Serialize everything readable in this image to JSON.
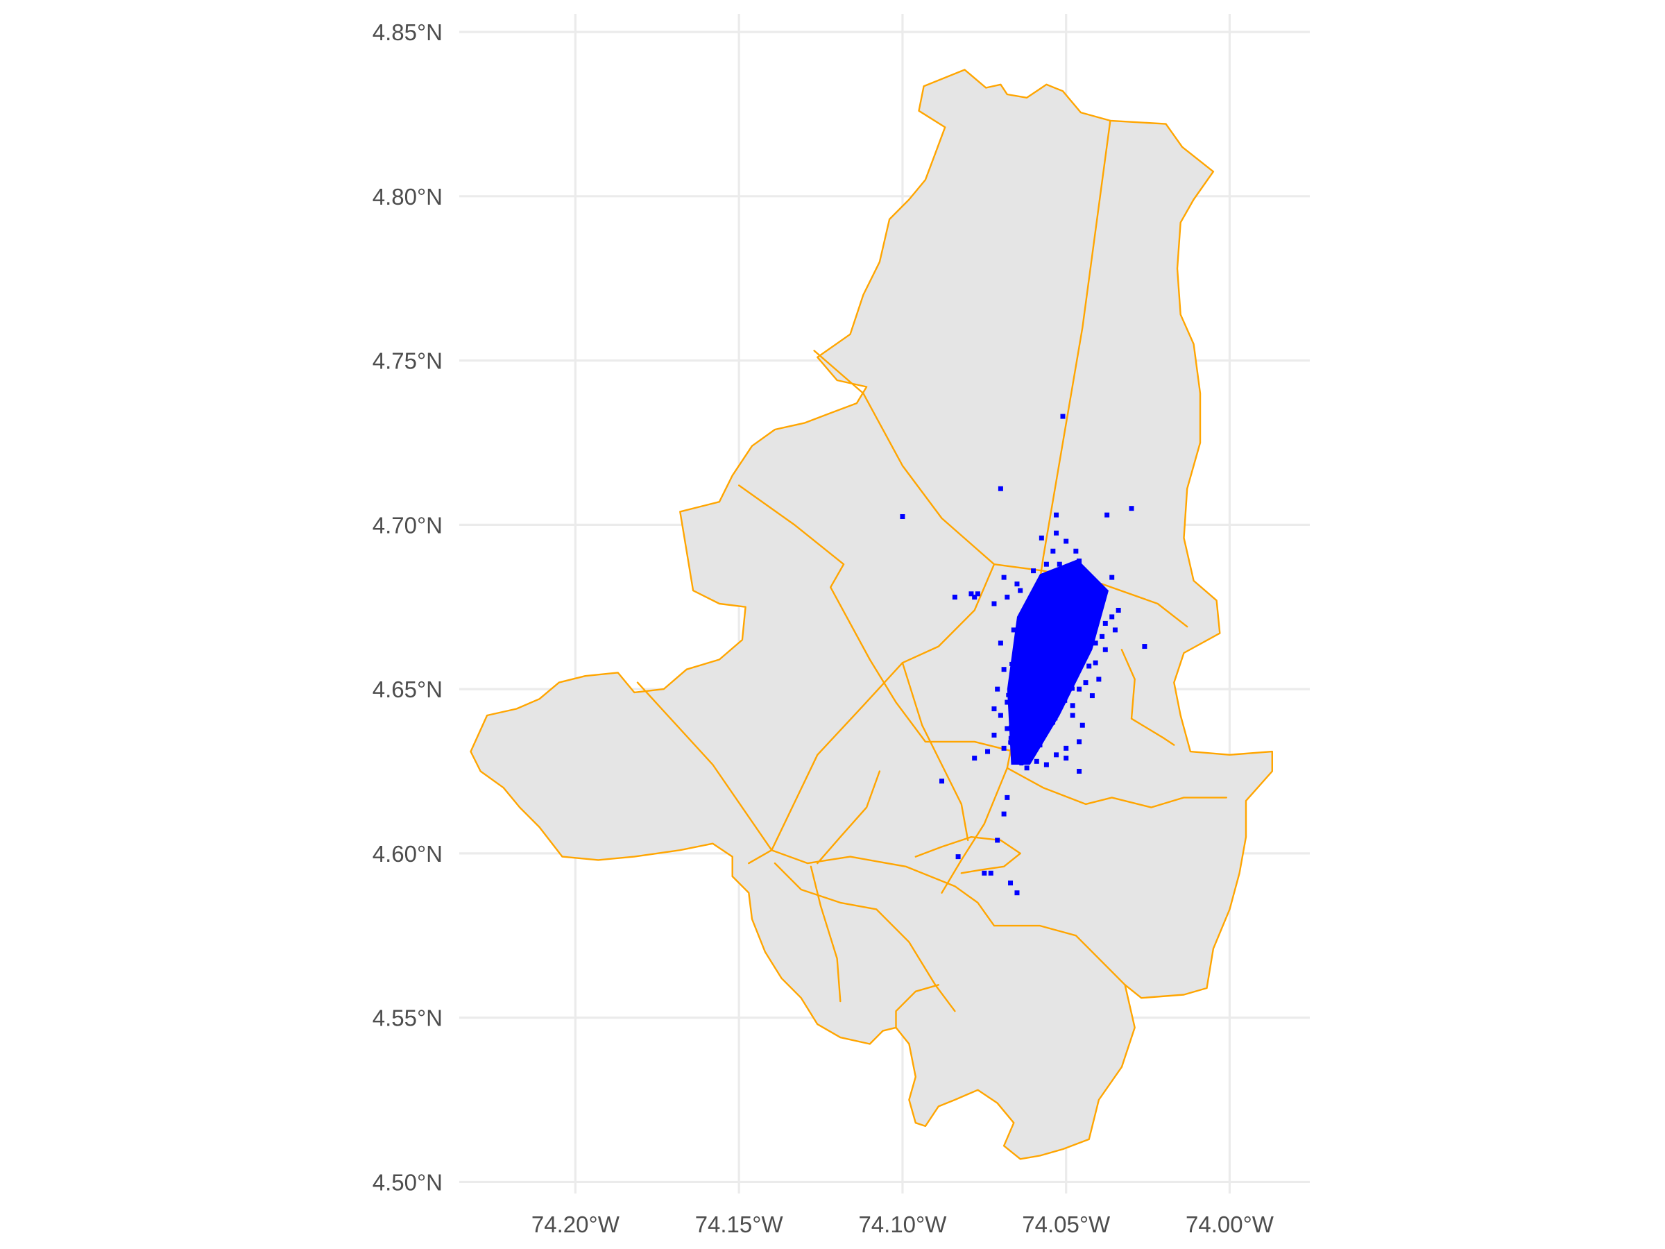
{
  "chart_data": {
    "type": "map",
    "y_ticks": [
      {
        "value": 4.85,
        "label": "4.85°N"
      },
      {
        "value": 4.8,
        "label": "4.80°N"
      },
      {
        "value": 4.75,
        "label": "4.75°N"
      },
      {
        "value": 4.7,
        "label": "4.70°N"
      },
      {
        "value": 4.65,
        "label": "4.65°N"
      },
      {
        "value": 4.6,
        "label": "4.60°N"
      },
      {
        "value": 4.55,
        "label": "4.55°N"
      },
      {
        "value": 4.5,
        "label": "4.50°N"
      }
    ],
    "x_ticks": [
      {
        "value": -74.2,
        "label": "74.20°W"
      },
      {
        "value": -74.15,
        "label": "74.15°W"
      },
      {
        "value": -74.1,
        "label": "74.10°W"
      },
      {
        "value": -74.05,
        "label": "74.05°W"
      },
      {
        "value": -74.0,
        "label": "74.00°W"
      }
    ],
    "xlim": [
      -74.2355,
      -73.9755
    ],
    "ylim": [
      4.4965,
      4.8555
    ],
    "grid": true,
    "colors": {
      "fill": "#e5e5e5",
      "boundary": "#ffa500",
      "points": "#0000ff",
      "grid": "#ebebeb",
      "tick_text": "#4d4d4d"
    },
    "outline": [
      [
        -74.0935,
        4.8335
      ],
      [
        -74.081,
        4.8385
      ],
      [
        -74.0745,
        4.833
      ],
      [
        -74.07,
        4.834
      ],
      [
        -74.068,
        4.831
      ],
      [
        -74.062,
        4.83
      ],
      [
        -74.056,
        4.834
      ],
      [
        -74.051,
        4.832
      ],
      [
        -74.0455,
        4.8255
      ],
      [
        -74.0365,
        4.823
      ],
      [
        -74.0195,
        4.822
      ],
      [
        -74.0145,
        4.815
      ],
      [
        -74.005,
        4.8075
      ],
      [
        -74.011,
        4.799
      ],
      [
        -74.015,
        4.792
      ],
      [
        -74.016,
        4.778
      ],
      [
        -74.015,
        4.764
      ],
      [
        -74.011,
        4.755
      ],
      [
        -74.009,
        4.74
      ],
      [
        -74.009,
        4.725
      ],
      [
        -74.013,
        4.711
      ],
      [
        -74.014,
        4.696
      ],
      [
        -74.011,
        4.683
      ],
      [
        -74.004,
        4.677
      ],
      [
        -74.003,
        4.667
      ],
      [
        -74.014,
        4.661
      ],
      [
        -74.017,
        4.652
      ],
      [
        -74.015,
        4.642
      ],
      [
        -74.012,
        4.631
      ],
      [
        -74.0,
        4.63
      ],
      [
        -73.987,
        4.631
      ],
      [
        -73.987,
        4.625
      ],
      [
        -73.995,
        4.616
      ],
      [
        -73.995,
        4.605
      ],
      [
        -73.997,
        4.594
      ],
      [
        -74.0,
        4.583
      ],
      [
        -74.005,
        4.571
      ],
      [
        -74.007,
        4.559
      ],
      [
        -74.014,
        4.557
      ],
      [
        -74.027,
        4.556
      ],
      [
        -74.032,
        4.56
      ],
      [
        -74.029,
        4.547
      ],
      [
        -74.033,
        4.535
      ],
      [
        -74.04,
        4.525
      ],
      [
        -74.043,
        4.513
      ],
      [
        -74.051,
        4.51
      ],
      [
        -74.058,
        4.508
      ],
      [
        -74.064,
        4.507
      ],
      [
        -74.069,
        4.511
      ],
      [
        -74.066,
        4.518
      ],
      [
        -74.071,
        4.524
      ],
      [
        -74.077,
        4.528
      ],
      [
        -74.084,
        4.525
      ],
      [
        -74.089,
        4.523
      ],
      [
        -74.093,
        4.517
      ],
      [
        -74.096,
        4.518
      ],
      [
        -74.098,
        4.525
      ],
      [
        -74.096,
        4.532
      ],
      [
        -74.098,
        4.542
      ],
      [
        -74.102,
        4.547
      ],
      [
        -74.106,
        4.546
      ],
      [
        -74.11,
        4.542
      ],
      [
        -74.119,
        4.544
      ],
      [
        -74.126,
        4.548
      ],
      [
        -74.131,
        4.556
      ],
      [
        -74.137,
        4.562
      ],
      [
        -74.142,
        4.57
      ],
      [
        -74.146,
        4.58
      ],
      [
        -74.147,
        4.588
      ],
      [
        -74.152,
        4.593
      ],
      [
        -74.152,
        4.599
      ],
      [
        -74.158,
        4.603
      ],
      [
        -74.168,
        4.601
      ],
      [
        -74.182,
        4.599
      ],
      [
        -74.193,
        4.598
      ],
      [
        -74.204,
        4.599
      ],
      [
        -74.211,
        4.608
      ],
      [
        -74.217,
        4.614
      ],
      [
        -74.222,
        4.62
      ],
      [
        -74.229,
        4.625
      ],
      [
        -74.232,
        4.631
      ],
      [
        -74.227,
        4.642
      ],
      [
        -74.218,
        4.644
      ],
      [
        -74.211,
        4.647
      ],
      [
        -74.205,
        4.652
      ],
      [
        -74.197,
        4.654
      ],
      [
        -74.187,
        4.655
      ],
      [
        -74.182,
        4.649
      ],
      [
        -74.173,
        4.65
      ],
      [
        -74.166,
        4.656
      ],
      [
        -74.156,
        4.659
      ],
      [
        -74.149,
        4.665
      ],
      [
        -74.148,
        4.675
      ],
      [
        -74.156,
        4.676
      ],
      [
        -74.164,
        4.68
      ],
      [
        -74.166,
        4.692
      ],
      [
        -74.168,
        4.704
      ],
      [
        -74.156,
        4.707
      ],
      [
        -74.152,
        4.715
      ],
      [
        -74.146,
        4.724
      ],
      [
        -74.139,
        4.729
      ],
      [
        -74.13,
        4.731
      ],
      [
        -74.122,
        4.734
      ],
      [
        -74.114,
        4.737
      ],
      [
        -74.111,
        4.742
      ],
      [
        -74.12,
        4.744
      ],
      [
        -74.126,
        4.751
      ],
      [
        -74.116,
        4.758
      ],
      [
        -74.112,
        4.77
      ],
      [
        -74.107,
        4.78
      ],
      [
        -74.104,
        4.793
      ],
      [
        -74.098,
        4.799
      ],
      [
        -74.093,
        4.805
      ],
      [
        -74.09,
        4.813
      ],
      [
        -74.087,
        4.821
      ],
      [
        -74.095,
        4.826
      ]
    ],
    "internal_boundaries": [
      [
        [
          -74.0365,
          4.823
        ],
        [
          -74.045,
          4.76
        ],
        [
          -74.057,
          4.69
        ],
        [
          -74.062,
          4.656
        ],
        [
          -74.068,
          4.626
        ],
        [
          -74.075,
          4.609
        ],
        [
          -74.082,
          4.598
        ],
        [
          -74.088,
          4.588
        ]
      ],
      [
        [
          -74.127,
          4.753
        ],
        [
          -74.112,
          4.74
        ],
        [
          -74.1,
          4.718
        ],
        [
          -74.088,
          4.702
        ],
        [
          -74.072,
          4.688
        ],
        [
          -74.057,
          4.686
        ],
        [
          -74.039,
          4.682
        ],
        [
          -74.022,
          4.676
        ],
        [
          -74.013,
          4.669
        ]
      ],
      [
        [
          -74.15,
          4.712
        ],
        [
          -74.133,
          4.7
        ],
        [
          -74.118,
          4.688
        ],
        [
          -74.122,
          4.681
        ],
        [
          -74.11,
          4.659
        ],
        [
          -74.102,
          4.646
        ],
        [
          -74.093,
          4.634
        ],
        [
          -74.078,
          4.634
        ],
        [
          -74.062,
          4.63
        ]
      ],
      [
        [
          -74.072,
          4.688
        ],
        [
          -74.078,
          4.674
        ],
        [
          -74.089,
          4.663
        ],
        [
          -74.1,
          4.658
        ],
        [
          -74.112,
          4.645
        ],
        [
          -74.126,
          4.63
        ],
        [
          -74.14,
          4.601
        ],
        [
          -74.147,
          4.597
        ]
      ],
      [
        [
          -74.181,
          4.652
        ],
        [
          -74.158,
          4.627
        ],
        [
          -74.14,
          4.601
        ]
      ],
      [
        [
          -74.14,
          4.601
        ],
        [
          -74.129,
          4.597
        ],
        [
          -74.116,
          4.599
        ],
        [
          -74.099,
          4.596
        ],
        [
          -74.084,
          4.59
        ],
        [
          -74.077,
          4.585
        ],
        [
          -74.072,
          4.578
        ],
        [
          -74.058,
          4.578
        ],
        [
          -74.047,
          4.575
        ],
        [
          -74.032,
          4.56
        ]
      ],
      [
        [
          -74.139,
          4.597
        ],
        [
          -74.131,
          4.589
        ],
        [
          -74.119,
          4.585
        ],
        [
          -74.108,
          4.583
        ],
        [
          -74.098,
          4.573
        ],
        [
          -74.09,
          4.56
        ],
        [
          -74.084,
          4.552
        ]
      ],
      [
        [
          -74.128,
          4.596
        ],
        [
          -74.125,
          4.584
        ],
        [
          -74.12,
          4.568
        ],
        [
          -74.119,
          4.555
        ]
      ],
      [
        [
          -74.089,
          4.56
        ],
        [
          -74.096,
          4.558
        ],
        [
          -74.102,
          4.552
        ],
        [
          -74.102,
          4.547
        ]
      ],
      [
        [
          -74.096,
          4.599
        ],
        [
          -74.088,
          4.602
        ],
        [
          -74.079,
          4.605
        ],
        [
          -74.07,
          4.604
        ],
        [
          -74.064,
          4.6
        ],
        [
          -74.069,
          4.596
        ],
        [
          -74.076,
          4.595
        ],
        [
          -74.082,
          4.594
        ]
      ],
      [
        [
          -74.068,
          4.626
        ],
        [
          -74.057,
          4.62
        ],
        [
          -74.044,
          4.615
        ],
        [
          -74.036,
          4.617
        ],
        [
          -74.024,
          4.614
        ],
        [
          -74.014,
          4.617
        ],
        [
          -74.001,
          4.617
        ]
      ],
      [
        [
          -74.033,
          4.662
        ],
        [
          -74.029,
          4.653
        ],
        [
          -74.03,
          4.641
        ],
        [
          -74.02,
          4.635
        ],
        [
          -74.017,
          4.633
        ]
      ],
      [
        [
          -74.107,
          4.625
        ],
        [
          -74.111,
          4.614
        ],
        [
          -74.119,
          4.605
        ],
        [
          -74.126,
          4.597
        ]
      ],
      [
        [
          -74.1,
          4.658
        ],
        [
          -74.094,
          4.639
        ],
        [
          -74.088,
          4.627
        ],
        [
          -74.082,
          4.615
        ],
        [
          -74.08,
          4.604
        ]
      ]
    ],
    "points_cluster": {
      "hull": [
        [
          -74.0668,
          4.627
        ],
        [
          -74.061,
          4.627
        ],
        [
          -74.052,
          4.642
        ],
        [
          -74.042,
          4.662
        ],
        [
          -74.037,
          4.68
        ],
        [
          -74.0465,
          4.6895
        ],
        [
          -74.058,
          4.685
        ],
        [
          -74.065,
          4.672
        ],
        [
          -74.068,
          4.65
        ]
      ]
    },
    "points": [
      [
        -74.051,
        4.733
      ],
      [
        -74.07,
        4.711
      ],
      [
        -74.1,
        4.7025
      ],
      [
        -74.03,
        4.705
      ],
      [
        -74.0375,
        4.703
      ],
      [
        -74.053,
        4.703
      ],
      [
        -74.053,
        4.6975
      ],
      [
        -74.0575,
        4.696
      ],
      [
        -74.05,
        4.695
      ],
      [
        -74.054,
        4.692
      ],
      [
        -74.056,
        4.688
      ],
      [
        -74.047,
        4.692
      ],
      [
        -74.046,
        4.689
      ],
      [
        -74.052,
        4.688
      ],
      [
        -74.06,
        4.686
      ],
      [
        -74.036,
        4.684
      ],
      [
        -74.069,
        4.684
      ],
      [
        -74.065,
        4.682
      ],
      [
        -74.064,
        4.68
      ],
      [
        -74.068,
        4.678
      ],
      [
        -74.077,
        4.679
      ],
      [
        -74.079,
        4.679
      ],
      [
        -74.078,
        4.678
      ],
      [
        -74.084,
        4.678
      ],
      [
        -74.072,
        4.676
      ],
      [
        -74.034,
        4.674
      ],
      [
        -74.036,
        4.672
      ],
      [
        -74.038,
        4.67
      ],
      [
        -74.035,
        4.668
      ],
      [
        -74.026,
        4.663
      ],
      [
        -74.039,
        4.666
      ],
      [
        -74.041,
        4.664
      ],
      [
        -74.064,
        4.67
      ],
      [
        -74.066,
        4.668
      ],
      [
        -74.07,
        4.664
      ],
      [
        -74.069,
        4.656
      ],
      [
        -74.071,
        4.65
      ],
      [
        -74.072,
        4.644
      ],
      [
        -74.068,
        4.646
      ],
      [
        -74.066,
        4.64
      ],
      [
        -74.07,
        4.642
      ],
      [
        -74.072,
        4.636
      ],
      [
        -74.068,
        4.638
      ],
      [
        -74.069,
        4.632
      ],
      [
        -74.074,
        4.631
      ],
      [
        -74.078,
        4.629
      ],
      [
        -74.088,
        4.622
      ],
      [
        -74.059,
        4.628
      ],
      [
        -74.062,
        4.626
      ],
      [
        -74.056,
        4.627
      ],
      [
        -74.046,
        4.625
      ],
      [
        -74.05,
        4.629
      ],
      [
        -74.053,
        4.63
      ],
      [
        -74.05,
        4.632
      ],
      [
        -74.046,
        4.634
      ],
      [
        -74.045,
        4.639
      ],
      [
        -74.048,
        4.642
      ],
      [
        -74.042,
        4.648
      ],
      [
        -74.04,
        4.653
      ],
      [
        -74.041,
        4.658
      ],
      [
        -74.038,
        4.662
      ],
      [
        -74.043,
        4.657
      ],
      [
        -74.044,
        4.652
      ],
      [
        -74.046,
        4.65
      ],
      [
        -74.048,
        4.645
      ],
      [
        -74.068,
        4.617
      ],
      [
        -74.069,
        4.612
      ],
      [
        -74.071,
        4.604
      ],
      [
        -74.083,
        4.599
      ],
      [
        -74.075,
        4.594
      ],
      [
        -74.073,
        4.594
      ],
      [
        -74.067,
        4.591
      ],
      [
        -74.065,
        4.588
      ],
      [
        -74.066,
        4.634
      ],
      [
        -74.065,
        4.63
      ],
      [
        -74.063,
        4.632
      ],
      [
        -74.06,
        4.634
      ],
      [
        -74.058,
        4.633
      ],
      [
        -74.062,
        4.648
      ],
      [
        -74.064,
        4.655
      ]
    ]
  }
}
